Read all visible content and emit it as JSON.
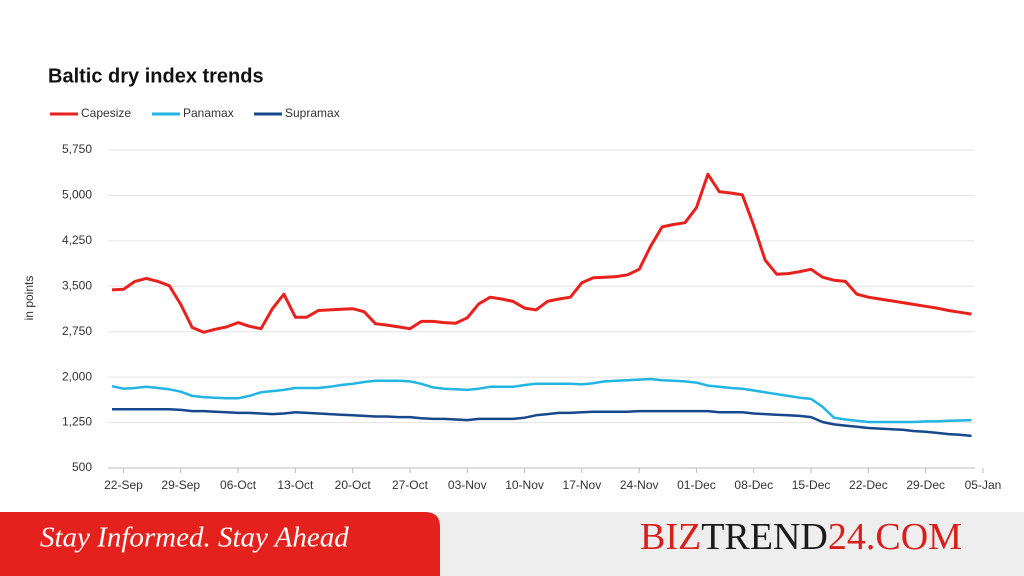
{
  "chart_data": {
    "type": "line",
    "title": "Baltic dry index trends",
    "y_label": "in points",
    "categories": [
      null,
      "22-Sep",
      null,
      null,
      null,
      null,
      "29-Sep",
      null,
      null,
      null,
      null,
      "06-Oct",
      null,
      null,
      null,
      null,
      "13-Oct",
      null,
      null,
      null,
      null,
      "20-Oct",
      null,
      null,
      null,
      null,
      "27-Oct",
      null,
      null,
      null,
      null,
      "03-Nov",
      null,
      null,
      null,
      null,
      "10-Nov",
      null,
      null,
      null,
      null,
      "17-Nov",
      null,
      null,
      null,
      null,
      "24-Nov",
      null,
      null,
      null,
      null,
      "01-Dec",
      null,
      null,
      null,
      null,
      "08-Dec",
      null,
      null,
      null,
      null,
      "15-Dec",
      null,
      null,
      null,
      null,
      "22-Dec",
      null,
      null,
      null,
      null,
      "29-Dec",
      null,
      null,
      null,
      null,
      "05-Jan"
    ],
    "series": [
      {
        "name": "Capesize",
        "color": "#e8211d",
        "values": [
          3440,
          3450,
          3580,
          3630,
          3580,
          3510,
          3200,
          2820,
          2740,
          2790,
          2830,
          2900,
          2840,
          2800,
          3130,
          3370,
          2990,
          2990,
          3100,
          3110,
          3120,
          3130,
          3080,
          2880,
          2860,
          2830,
          2800,
          2920,
          2920,
          2900,
          2890,
          2980,
          3210,
          3320,
          3290,
          3250,
          3140,
          3110,
          3250,
          3290,
          3320,
          3560,
          3640,
          3650,
          3660,
          3690,
          3780,
          4160,
          4480,
          4520,
          4550,
          4800,
          5350,
          5060,
          5040,
          5010,
          4500,
          3930,
          3700,
          3710,
          3740,
          3780,
          3650,
          3600,
          3580,
          3370,
          3320,
          3290,
          3260,
          3230,
          3200,
          3170,
          3140,
          3100,
          3070,
          3040,
          null
        ]
      },
      {
        "name": "Panamax",
        "color": "#22b5e3",
        "values": [
          1850,
          1810,
          1820,
          1840,
          1820,
          1800,
          1760,
          1690,
          1670,
          1660,
          1650,
          1650,
          1690,
          1750,
          1770,
          1790,
          1820,
          1820,
          1820,
          1840,
          1870,
          1890,
          1920,
          1940,
          1940,
          1940,
          1930,
          1890,
          1830,
          1810,
          1800,
          1790,
          1810,
          1840,
          1840,
          1840,
          1870,
          1890,
          1890,
          1890,
          1890,
          1880,
          1900,
          1930,
          1940,
          1950,
          1960,
          1970,
          1950,
          1940,
          1930,
          1910,
          1860,
          1840,
          1820,
          1810,
          1780,
          1750,
          1720,
          1690,
          1660,
          1640,
          1510,
          1330,
          1300,
          1280,
          1260,
          1260,
          1260,
          1260,
          1260,
          1270,
          1270,
          1280,
          1285,
          1290,
          null
        ]
      },
      {
        "name": "Supramax",
        "color": "#17478c",
        "values": [
          1470,
          1470,
          1470,
          1470,
          1470,
          1470,
          1460,
          1440,
          1440,
          1430,
          1420,
          1410,
          1410,
          1400,
          1390,
          1400,
          1420,
          1410,
          1400,
          1390,
          1380,
          1370,
          1360,
          1350,
          1350,
          1340,
          1340,
          1320,
          1310,
          1310,
          1300,
          1290,
          1310,
          1310,
          1310,
          1310,
          1330,
          1370,
          1390,
          1410,
          1410,
          1420,
          1430,
          1430,
          1430,
          1430,
          1440,
          1440,
          1440,
          1440,
          1440,
          1440,
          1440,
          1420,
          1420,
          1420,
          1400,
          1390,
          1380,
          1370,
          1360,
          1340,
          1260,
          1220,
          1200,
          1180,
          1160,
          1150,
          1140,
          1130,
          1110,
          1100,
          1080,
          1060,
          1050,
          1030,
          null
        ]
      }
    ],
    "ylim": [
      500,
      5750
    ],
    "yticks": [
      500,
      {
        "value": 1250,
        "label": "1,250"
      },
      {
        "value": 2000,
        "label": "2,000"
      },
      {
        "value": 2750,
        "label": "2,750"
      },
      {
        "value": 3500,
        "label": "3,500"
      },
      {
        "value": 4250,
        "label": "4,250"
      },
      {
        "value": 5000,
        "label": "5,000"
      },
      {
        "value": 5750,
        "label": "5,750"
      }
    ],
    "grid": true
  },
  "footer": {
    "tagline": "Stay Informed. Stay Ahead",
    "brand": [
      "BIZ",
      "TREND",
      "24",
      ".COM"
    ]
  }
}
